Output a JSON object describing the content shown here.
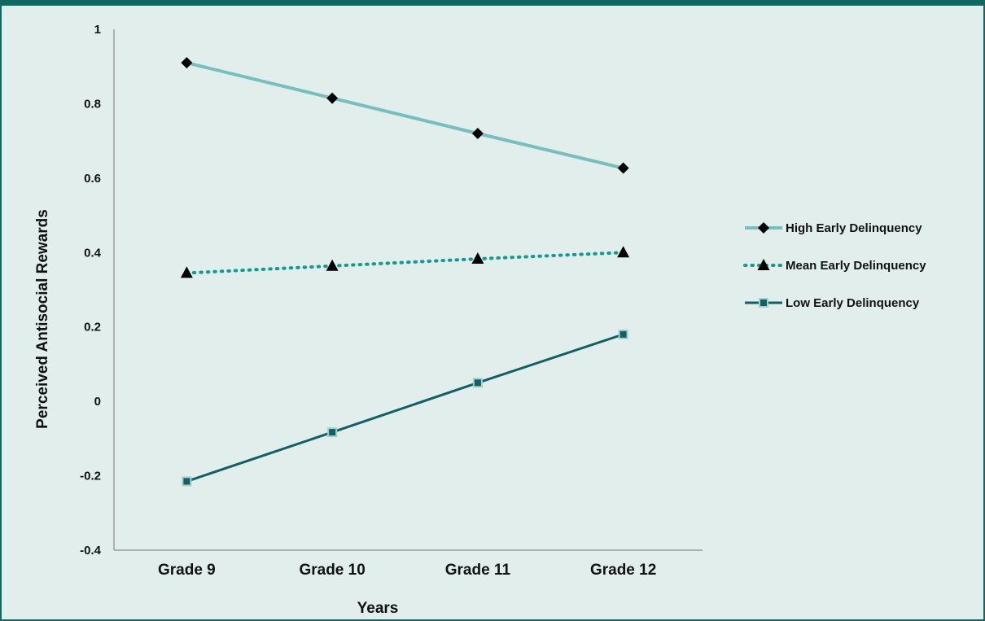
{
  "colors": {
    "background": "#e1eeec",
    "header_bar": "#0e6a60",
    "high": "#76bfbd",
    "mean": "#159a90",
    "low": "#135f66",
    "marker_dark": "#000000",
    "low_marker_fill": "#135f66",
    "low_marker_edge": "#a7cfcc"
  },
  "chart_data": {
    "type": "line",
    "categories": [
      "Grade 9",
      "Grade 10",
      "Grade 11",
      "Grade 12"
    ],
    "xlabel": "Years",
    "ylabel": "Perceived Antisocial Rewards",
    "ylim": [
      -0.4,
      1
    ],
    "yticks": [
      -0.4,
      -0.2,
      0,
      0.2,
      0.4,
      0.6,
      0.8,
      1
    ],
    "ytick_labels": [
      "-0.4",
      "-0.2",
      "0",
      "0.2",
      "0.4",
      "0.6",
      "0.8",
      "1"
    ],
    "grid": false,
    "legend_position": "right",
    "series": [
      {
        "name": "High Early Delinquency",
        "values": [
          0.91,
          0.815,
          0.72,
          0.627
        ],
        "line": "solid",
        "marker": "diamond"
      },
      {
        "name": "Mean Early Delinquency",
        "values": [
          0.345,
          0.364,
          0.383,
          0.4
        ],
        "line": "dotted",
        "marker": "triangle"
      },
      {
        "name": "Low Early Delinquency",
        "values": [
          -0.215,
          -0.083,
          0.05,
          0.18
        ],
        "line": "solid",
        "marker": "square"
      }
    ]
  }
}
